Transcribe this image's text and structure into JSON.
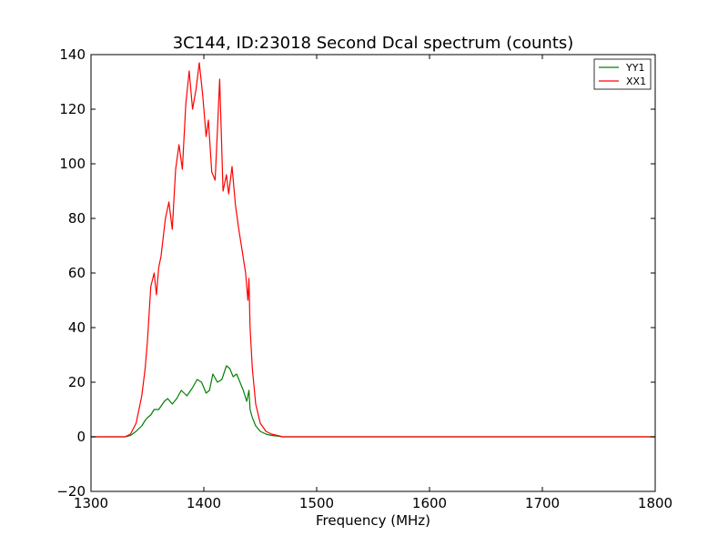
{
  "chart_data": {
    "type": "line",
    "title": "3C144, ID:23018 Second Dcal spectrum (counts)",
    "xlabel": "Frequency (MHz)",
    "ylabel": "",
    "xlim": [
      1300,
      1800
    ],
    "ylim": [
      -20,
      140
    ],
    "xticks": [
      1300,
      1400,
      1500,
      1600,
      1700,
      1800
    ],
    "yticks": [
      -20,
      0,
      20,
      40,
      60,
      80,
      100,
      120,
      140
    ],
    "legend_position": "top-right",
    "grid": false,
    "series": [
      {
        "name": "YY1",
        "color": "#008000",
        "x": [
          1300,
          1330,
          1335,
          1340,
          1345,
          1348,
          1350,
          1353,
          1356,
          1360,
          1365,
          1368,
          1372,
          1376,
          1380,
          1385,
          1390,
          1394,
          1398,
          1402,
          1405,
          1408,
          1412,
          1416,
          1420,
          1423,
          1426,
          1429,
          1432,
          1435,
          1438,
          1440,
          1441,
          1443,
          1446,
          1450,
          1455,
          1460,
          1465,
          1470,
          1500,
          1600,
          1700,
          1800
        ],
        "y": [
          0,
          0,
          0.5,
          2,
          4,
          6,
          7,
          8,
          10,
          10,
          13,
          14,
          12,
          14,
          17,
          15,
          18,
          21,
          20,
          16,
          17,
          23,
          20,
          21,
          26,
          25,
          22,
          23,
          20,
          17,
          13,
          17,
          10,
          7,
          4,
          2,
          1,
          0.5,
          0.3,
          0,
          0,
          0,
          0,
          0
        ]
      },
      {
        "name": "XX1",
        "color": "#ff0000",
        "x": [
          1300,
          1330,
          1335,
          1340,
          1345,
          1348,
          1350,
          1353,
          1356,
          1358,
          1360,
          1362,
          1366,
          1369,
          1372,
          1375,
          1378,
          1381,
          1384,
          1387,
          1390,
          1393,
          1396,
          1399,
          1402,
          1404,
          1407,
          1410,
          1412,
          1414,
          1417,
          1420,
          1422,
          1425,
          1428,
          1431,
          1434,
          1437,
          1439,
          1440,
          1441,
          1443,
          1446,
          1450,
          1455,
          1460,
          1465,
          1470,
          1500,
          1600,
          1700,
          1800
        ],
        "y": [
          0,
          0,
          1,
          5,
          15,
          25,
          35,
          55,
          60,
          52,
          62,
          66,
          80,
          86,
          76,
          98,
          107,
          98,
          122,
          134,
          120,
          127,
          137,
          125,
          110,
          116,
          97,
          94,
          112,
          131,
          90,
          96,
          89,
          99,
          85,
          76,
          68,
          60,
          50,
          58,
          40,
          25,
          12,
          5,
          2,
          1,
          0.5,
          0,
          0,
          0,
          0,
          0
        ]
      }
    ]
  }
}
